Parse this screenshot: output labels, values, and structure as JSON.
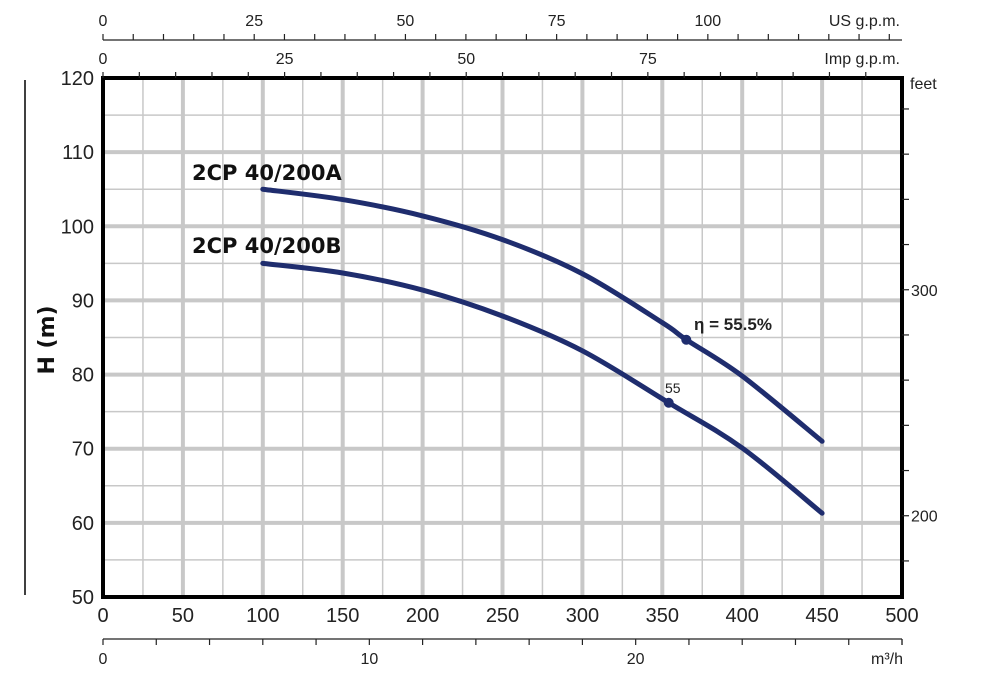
{
  "chart_data": {
    "type": "line",
    "title": "",
    "xlabel": "",
    "ylabel": "H (m)",
    "xlim": [
      0,
      500
    ],
    "ylim": [
      50,
      120
    ],
    "x_ticks": [
      0,
      50,
      100,
      150,
      200,
      250,
      300,
      350,
      400,
      450,
      500
    ],
    "y_ticks": [
      50,
      60,
      70,
      80,
      90,
      100,
      110,
      120
    ],
    "grid": true,
    "series": [
      {
        "name": "2CP 40/200A",
        "color": "#1f2d6e",
        "x": [
          100,
          150,
          200,
          250,
          300,
          350,
          365,
          400,
          450
        ],
        "y": [
          105,
          103.6,
          101.4,
          98.2,
          93.6,
          87.0,
          84.7,
          79.8,
          71.0
        ]
      },
      {
        "name": "2CP 40/200B",
        "color": "#1f2d6e",
        "x": [
          100,
          150,
          200,
          250,
          300,
          354,
          400,
          450
        ],
        "y": [
          95,
          93.7,
          91.4,
          87.9,
          83.2,
          76.2,
          70.1,
          61.3
        ]
      }
    ],
    "annotations": [
      {
        "series": 0,
        "x": 365,
        "y": 84.7,
        "text": "η = 55.5%"
      },
      {
        "series": 1,
        "x": 354,
        "y": 76.2,
        "text": "55"
      }
    ],
    "secondary_axes": {
      "top_us": {
        "label": "US g.p.m.",
        "ticks": [
          0,
          25,
          50,
          75,
          100
        ]
      },
      "top_imp": {
        "label": "Imp g.p.m.",
        "ticks": [
          0,
          25,
          50,
          75
        ]
      },
      "bottom_m3h": {
        "label": "m³/h",
        "ticks": [
          0,
          10,
          20
        ]
      },
      "right_feet": {
        "label": "feet",
        "ticks": [
          200,
          300
        ]
      }
    }
  }
}
